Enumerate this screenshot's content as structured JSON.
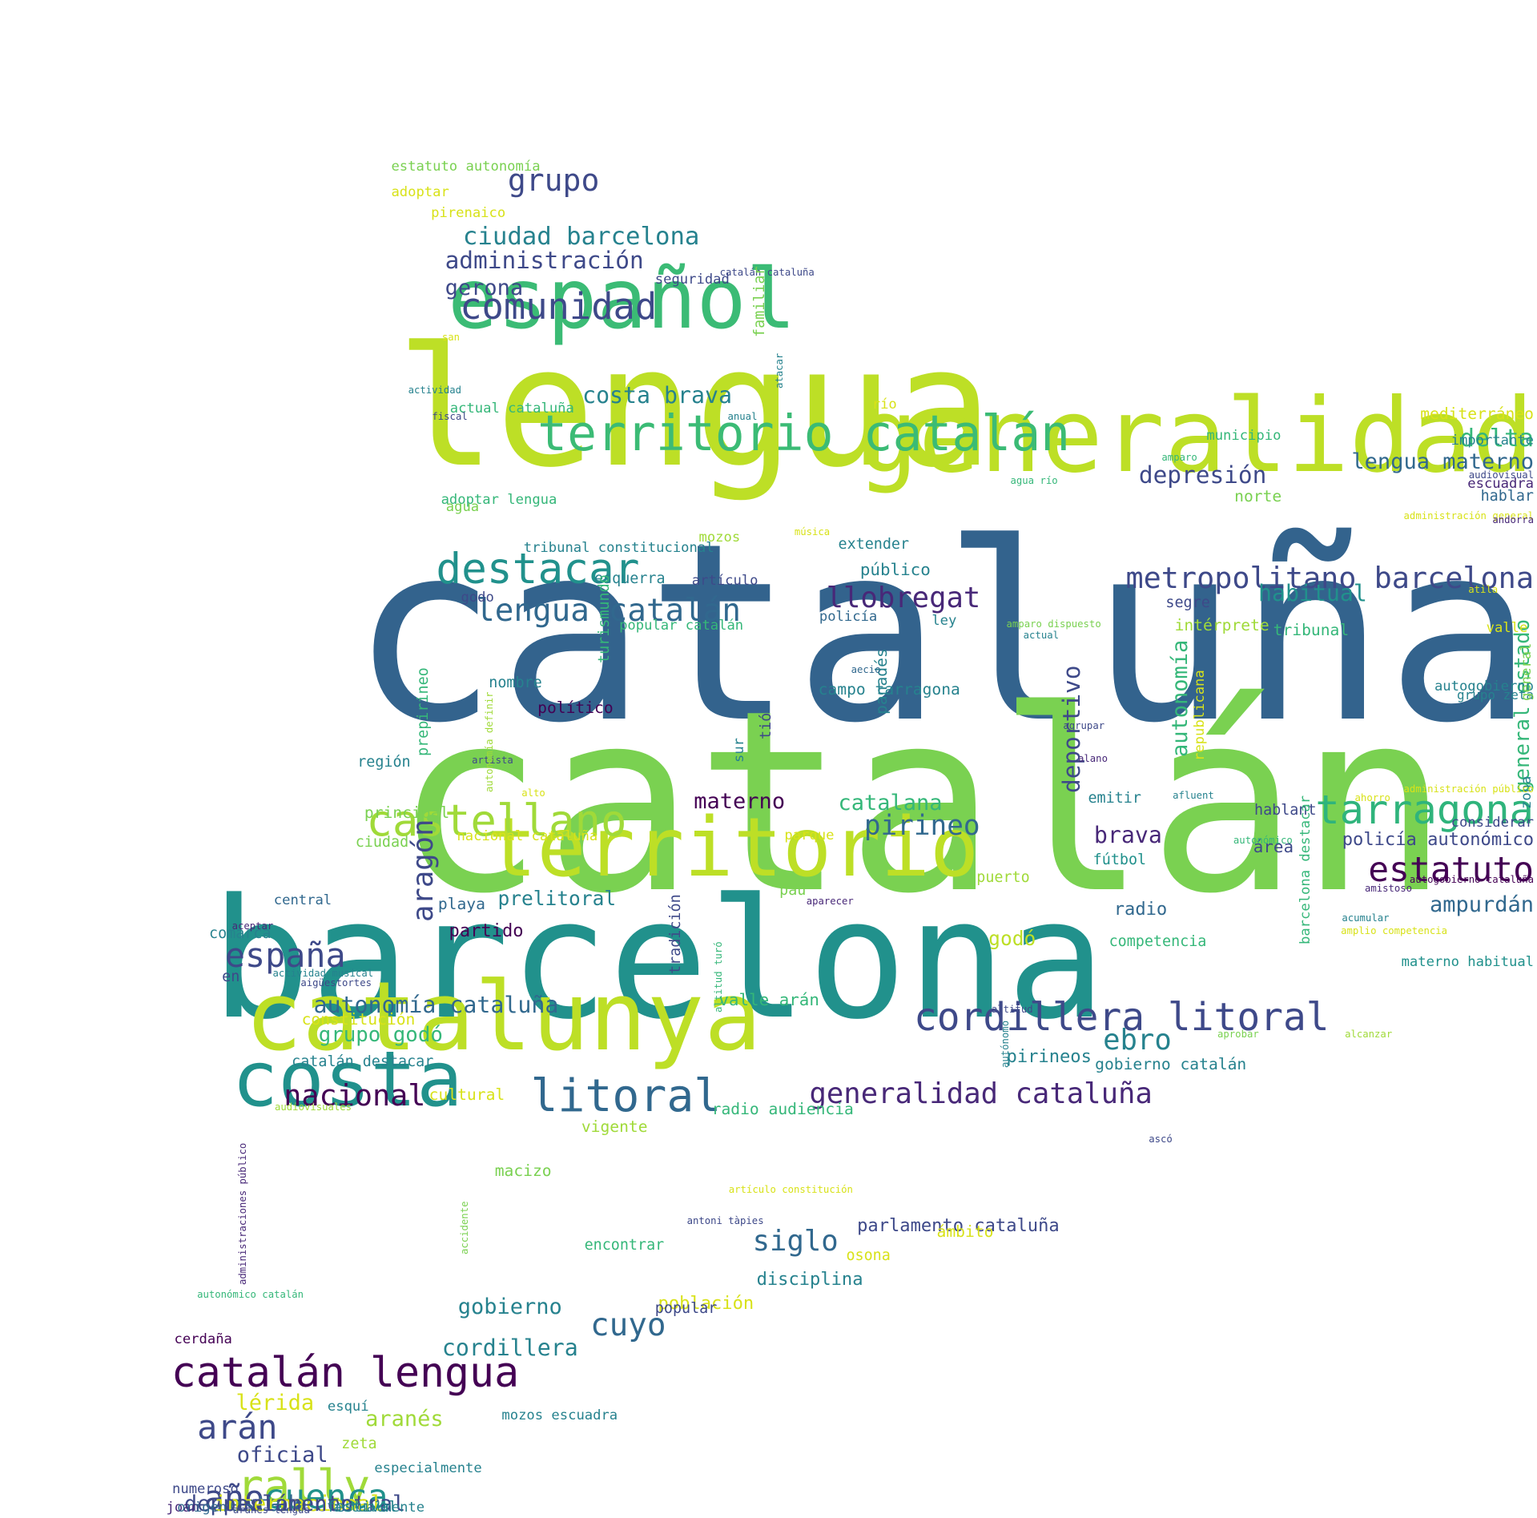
{
  "words": [
    {
      "t": "cataluña",
      "c": "#33638d"
    },
    {
      "t": "catalán",
      "c": "#7ad151"
    },
    {
      "t": "barcelona",
      "c": "#21918c"
    },
    {
      "t": "lengua",
      "c": "#bddf26"
    },
    {
      "t": "generalidad",
      "c": "#bddf26"
    },
    {
      "t": "español",
      "c": "#3bbb75"
    },
    {
      "t": "territorio",
      "c": "#bddf26"
    },
    {
      "t": "catalunya",
      "c": "#bddf26"
    },
    {
      "t": "costa",
      "c": "#21918c"
    },
    {
      "t": "territorio catalán",
      "c": "#3bbb75"
    },
    {
      "t": "catalán lengua",
      "c": "#440154"
    },
    {
      "t": "comunidad",
      "c": "#3e4989"
    },
    {
      "t": "destacar",
      "c": "#21918c"
    },
    {
      "t": "castellano",
      "c": "#a0da39"
    },
    {
      "t": "tarragona",
      "c": "#2fb47c"
    },
    {
      "t": "cordillera litoral",
      "c": "#3e4989"
    },
    {
      "t": "litoral",
      "c": "#31688e"
    },
    {
      "t": "rally",
      "c": "#a0da39"
    },
    {
      "t": "españa",
      "c": "#3e4989"
    },
    {
      "t": "estatuto",
      "c": "#440154"
    },
    {
      "t": "metropolitano barcelona",
      "c": "#3e4989"
    },
    {
      "t": "generalidad cataluña",
      "c": "#482878"
    },
    {
      "t": "lengua catalán",
      "c": "#31688e"
    },
    {
      "t": "llobregat",
      "c": "#482878"
    },
    {
      "t": "ebro",
      "c": "#26828e"
    },
    {
      "t": "cuyo",
      "c": "#31688e"
    },
    {
      "t": "grupo",
      "c": "#3e4989"
    },
    {
      "t": "siglo",
      "c": "#31688e"
    },
    {
      "t": "año",
      "c": "#3e4989"
    },
    {
      "t": "arán",
      "c": "#3e4989"
    },
    {
      "t": "cuenca",
      "c": "#21918c"
    },
    {
      "t": "nacional",
      "c": "#440154"
    },
    {
      "t": "pirineo",
      "c": "#31688e"
    },
    {
      "t": "autonomía cataluña",
      "c": "#31688e"
    },
    {
      "t": "delta",
      "c": "#35b779"
    },
    {
      "t": "depresión",
      "c": "#3e4989"
    },
    {
      "t": "ciudad barcelona",
      "c": "#26828e"
    },
    {
      "t": "administración",
      "c": "#3e4989"
    },
    {
      "t": "costa brava",
      "c": "#26828e"
    },
    {
      "t": "lengua materno",
      "c": "#31688e"
    },
    {
      "t": "deportivo",
      "c": "#3e4989"
    },
    {
      "t": "autonomía",
      "c": "#35b779"
    },
    {
      "t": "aragón",
      "c": "#3e4989"
    },
    {
      "t": "brava",
      "c": "#482878"
    },
    {
      "t": "catalana",
      "c": "#35b779"
    },
    {
      "t": "materno",
      "c": "#440154"
    },
    {
      "t": "ampurdán",
      "c": "#31688e"
    },
    {
      "t": "general estado",
      "c": "#35b779"
    },
    {
      "t": "habitual",
      "c": "#21918c"
    },
    {
      "t": "aranés",
      "c": "#a0da39"
    },
    {
      "t": "gobierno",
      "c": "#26828e"
    },
    {
      "t": "cordillera",
      "c": "#26828e"
    },
    {
      "t": "oficial",
      "c": "#3e4989"
    },
    {
      "t": "lérida",
      "c": "#d8e219"
    },
    {
      "t": "depresión central",
      "c": "#3e4989"
    },
    {
      "t": "estado",
      "c": "#31688e"
    },
    {
      "t": "internacional",
      "c": "#d8e219"
    },
    {
      "t": "parlamento",
      "c": "#3e4989"
    },
    {
      "t": "godó",
      "c": "#bddf26"
    },
    {
      "t": "grupo godó",
      "c": "#35b779"
    },
    {
      "t": "gerona",
      "c": "#3e4989"
    },
    {
      "t": "prelitoral",
      "c": "#26828e"
    },
    {
      "t": "radio",
      "c": "#31688e"
    },
    {
      "t": "parlamento cataluña",
      "c": "#3e4989"
    },
    {
      "t": "pirineos",
      "c": "#26828e"
    },
    {
      "t": "gobierno catalán",
      "c": "#26828e"
    },
    {
      "t": "policía autonómico",
      "c": "#3e4989"
    },
    {
      "t": "población",
      "c": "#d8e219"
    },
    {
      "t": "disciplina",
      "c": "#26828e"
    },
    {
      "t": "partido",
      "c": "#440154"
    },
    {
      "t": "público",
      "c": "#26828e"
    },
    {
      "t": "campo tarragona",
      "c": "#26828e"
    },
    {
      "t": "valle arán",
      "c": "#35b779"
    },
    {
      "t": "playa",
      "c": "#31688e"
    },
    {
      "t": "área",
      "c": "#3e4989"
    },
    {
      "t": "hablant",
      "c": "#3e4989"
    },
    {
      "t": "emitir",
      "c": "#26828e"
    },
    {
      "t": "fútbol",
      "c": "#21918c"
    },
    {
      "t": "extender",
      "c": "#26828e"
    },
    {
      "t": "tribunal constitucional",
      "c": "#26828e"
    },
    {
      "t": "artículo",
      "c": "#3e4989"
    },
    {
      "t": "esquerra",
      "c": "#26828e"
    },
    {
      "t": "policía",
      "c": "#31688e"
    },
    {
      "t": "ley",
      "c": "#26828e"
    },
    {
      "t": "popular catalán",
      "c": "#35b779"
    },
    {
      "t": "político",
      "c": "#440154"
    },
    {
      "t": "nombre",
      "c": "#26828e"
    },
    {
      "t": "región",
      "c": "#26828e"
    },
    {
      "t": "principal",
      "c": "#7ad151"
    },
    {
      "t": "ciudad",
      "c": "#7ad151"
    },
    {
      "t": "nacional cataluña",
      "c": "#d8e219"
    },
    {
      "t": "central",
      "c": "#31688e"
    },
    {
      "t": "comarca",
      "c": "#26828e"
    },
    {
      "t": "en",
      "c": "#3e4989"
    },
    {
      "t": "constitución",
      "c": "#d8e219"
    },
    {
      "t": "catalán destacar",
      "c": "#26828e"
    },
    {
      "t": "cultural",
      "c": "#d8e219"
    },
    {
      "t": "radio audiencia",
      "c": "#35b779"
    },
    {
      "t": "vigente",
      "c": "#a0da39"
    },
    {
      "t": "macizo",
      "c": "#7ad151"
    },
    {
      "t": "encontrar",
      "c": "#35b779"
    },
    {
      "t": "ámbito",
      "c": "#d8e219"
    },
    {
      "t": "osona",
      "c": "#d8e219"
    },
    {
      "t": "popular",
      "c": "#3e4989"
    },
    {
      "t": "cerdaña",
      "c": "#440154"
    },
    {
      "t": "esquí",
      "c": "#26828e"
    },
    {
      "t": "mozos escuadra",
      "c": "#26828e"
    },
    {
      "t": "zeta",
      "c": "#a0da39"
    },
    {
      "t": "especialmente",
      "c": "#26828e"
    },
    {
      "t": "numeroso",
      "c": "#3e4989"
    },
    {
      "t": "joan",
      "c": "#482878"
    },
    {
      "t": "festival",
      "c": "#26828e"
    },
    {
      "t": "actualmente",
      "c": "#26828e"
    },
    {
      "t": "origen",
      "c": "#31688e"
    },
    {
      "t": "río",
      "c": "#d8e219"
    },
    {
      "t": "municipio",
      "c": "#35b779"
    },
    {
      "t": "norte",
      "c": "#7ad151"
    },
    {
      "t": "mediterráneo",
      "c": "#d8e219"
    },
    {
      "t": "importante",
      "c": "#26828e"
    },
    {
      "t": "escuadra",
      "c": "#482878"
    },
    {
      "t": "hablar",
      "c": "#31688e"
    },
    {
      "t": "tribunal",
      "c": "#35b779"
    },
    {
      "t": "intérprete",
      "c": "#a0da39"
    },
    {
      "t": "segre",
      "c": "#3e4989"
    },
    {
      "t": "valle",
      "c": "#d8e219"
    },
    {
      "t": "autogobierno",
      "c": "#26828e"
    },
    {
      "t": "grupo zeta",
      "c": "#26828e"
    },
    {
      "t": "general",
      "c": "#7ad151"
    },
    {
      "t": "zona",
      "c": "#26828e"
    },
    {
      "t": "considerar",
      "c": "#3e4989"
    },
    {
      "t": "materno habitual",
      "c": "#21918c"
    },
    {
      "t": "puerto",
      "c": "#a0da39"
    },
    {
      "t": "pau",
      "c": "#7ad151"
    },
    {
      "t": "parque",
      "c": "#d8e219"
    },
    {
      "t": "competencia",
      "c": "#35b779"
    },
    {
      "t": "panadés",
      "c": "#26828e"
    },
    {
      "t": "tió",
      "c": "#3e4989"
    },
    {
      "t": "sur",
      "c": "#26828e"
    },
    {
      "t": "tradición",
      "c": "#3e4989"
    },
    {
      "t": "republicana",
      "c": "#d8e219"
    },
    {
      "t": "barcelona destacar",
      "c": "#35b779"
    },
    {
      "t": "prepirineo",
      "c": "#35b779"
    },
    {
      "t": "turismundo",
      "c": "#35b779"
    },
    {
      "t": "estatuto autonomía",
      "c": "#7ad151"
    },
    {
      "t": "adoptar",
      "c": "#d8e219"
    },
    {
      "t": "pirenaico",
      "c": "#d8e219"
    },
    {
      "t": "seguridad",
      "c": "#3e4989"
    },
    {
      "t": "catalán cataluña",
      "c": "#3e4989"
    },
    {
      "t": "familiar",
      "c": "#7ad151"
    },
    {
      "t": "atacar",
      "c": "#26828e"
    },
    {
      "t": "san",
      "c": "#d8e219"
    },
    {
      "t": "actividad",
      "c": "#26828e"
    },
    {
      "t": "actual cataluña",
      "c": "#35b779"
    },
    {
      "t": "anual",
      "c": "#26828e"
    },
    {
      "t": "fiscal",
      "c": "#3e4989"
    },
    {
      "t": "adoptar lengua",
      "c": "#35b779"
    },
    {
      "t": "agua",
      "c": "#7ad151"
    },
    {
      "t": "godo",
      "c": "#3e4989"
    },
    {
      "t": "mozos",
      "c": "#a0da39"
    },
    {
      "t": "música",
      "c": "#d8e219"
    },
    {
      "t": "agua río",
      "c": "#35b779"
    },
    {
      "t": "amparo",
      "c": "#35b779"
    },
    {
      "t": "audiovisual",
      "c": "#3e4989"
    },
    {
      "t": "administración general",
      "c": "#d8e219"
    },
    {
      "t": "andorra",
      "c": "#482878"
    },
    {
      "t": "atila",
      "c": "#d8e219"
    },
    {
      "t": "amparo dispuesto",
      "c": "#7ad151"
    },
    {
      "t": "actual",
      "c": "#26828e"
    },
    {
      "t": "aecio",
      "c": "#31688e"
    },
    {
      "t": "agrupar",
      "c": "#3e4989"
    },
    {
      "t": "alano",
      "c": "#482878"
    },
    {
      "t": "artista",
      "c": "#3e4989"
    },
    {
      "t": "autonomía definir",
      "c": "#a0da39"
    },
    {
      "t": "alto",
      "c": "#d8e219"
    },
    {
      "t": "afluent",
      "c": "#26828e"
    },
    {
      "t": "autonómico",
      "c": "#35b779"
    },
    {
      "t": "administración público",
      "c": "#d8e219"
    },
    {
      "t": "ahorro",
      "c": "#d8e219"
    },
    {
      "t": "autogobierno cataluña",
      "c": "#440154"
    },
    {
      "t": "amistoso",
      "c": "#482878"
    },
    {
      "t": "aparecer",
      "c": "#482878"
    },
    {
      "t": "altitud",
      "c": "#3e4989"
    },
    {
      "t": "altitud turó",
      "c": "#35b779"
    },
    {
      "t": "autónomo",
      "c": "#26828e"
    },
    {
      "t": "alcanzar",
      "c": "#a0da39"
    },
    {
      "t": "acumular",
      "c": "#26828e"
    },
    {
      "t": "amplio competencia",
      "c": "#d8e219"
    },
    {
      "t": "aprobar",
      "c": "#7ad151"
    },
    {
      "t": "ascó",
      "c": "#3e4989"
    },
    {
      "t": "artículo constitución",
      "c": "#d8e219"
    },
    {
      "t": "antoni tàpies",
      "c": "#3e4989"
    },
    {
      "t": "accidente",
      "c": "#7ad151"
    },
    {
      "t": "administraciones público",
      "c": "#482878"
    },
    {
      "t": "autonómico catalán",
      "c": "#35b779"
    },
    {
      "t": "aceptar",
      "c": "#482878"
    },
    {
      "t": "actividad musical",
      "c": "#26828e"
    },
    {
      "t": "aigüestortes",
      "c": "#3e4989"
    },
    {
      "t": "audiovisuales",
      "c": "#a0da39"
    },
    {
      "t": "aranés lengua",
      "c": "#3e4989"
    }
  ]
}
